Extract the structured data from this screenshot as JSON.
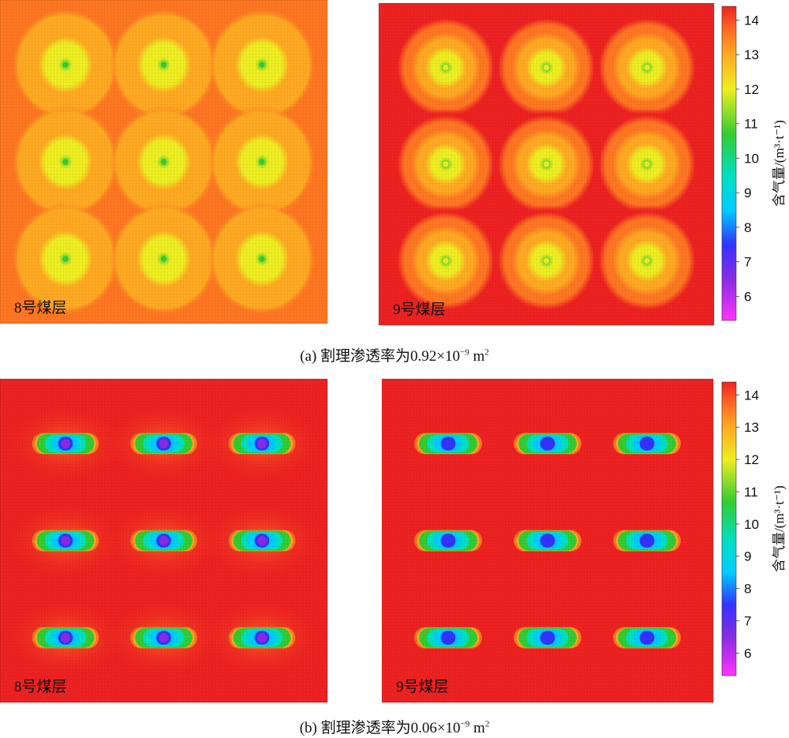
{
  "figure": {
    "caption_a": {
      "prefix": "(a)  割理渗透率为0.92×10",
      "exp": "−9",
      "unit": " m",
      "unit_exp": "2"
    },
    "caption_b": {
      "prefix": "(b) 割理渗透率为0.06×10",
      "exp": "−9",
      "unit": " m",
      "unit_exp": "2"
    }
  },
  "colorbar": {
    "label": "含气量/(m³·t⁻¹)",
    "ticks": [
      "14",
      "13",
      "12",
      "11",
      "10",
      "9",
      "8",
      "7",
      "6"
    ],
    "range": [
      5.3,
      14.4
    ]
  },
  "chart_data": [
    {
      "type": "heatmap",
      "panel": "a-left",
      "label": "8号煤层",
      "background": 13.3,
      "wells": {
        "x": [
          1,
          2,
          3
        ],
        "y": [
          1,
          2,
          3
        ],
        "min_value": 10.3
      },
      "well_shape": "round",
      "radius_scale": 1.0
    },
    {
      "type": "heatmap",
      "panel": "a-right",
      "label": "9号煤层",
      "background": 14.2,
      "wells": {
        "x": [
          1,
          2,
          3
        ],
        "y": [
          1,
          2,
          3
        ],
        "min_value": 10.6
      },
      "well_shape": "round",
      "radius_scale": 1.0
    },
    {
      "type": "heatmap",
      "panel": "b-left",
      "label": "8号煤层",
      "background": 14.2,
      "wells": {
        "x": [
          1,
          2,
          3
        ],
        "y": [
          1,
          2,
          3
        ],
        "min_value": 6.2
      },
      "well_shape": "elongated",
      "radius_scale": 1.0
    },
    {
      "type": "heatmap",
      "panel": "b-right",
      "label": "9号煤层",
      "background": 14.2,
      "wells": {
        "x": [
          1,
          2,
          3
        ],
        "y": [
          1,
          2,
          3
        ],
        "min_value": 6.8
      },
      "well_shape": "elongated",
      "radius_scale": 1.0
    }
  ]
}
